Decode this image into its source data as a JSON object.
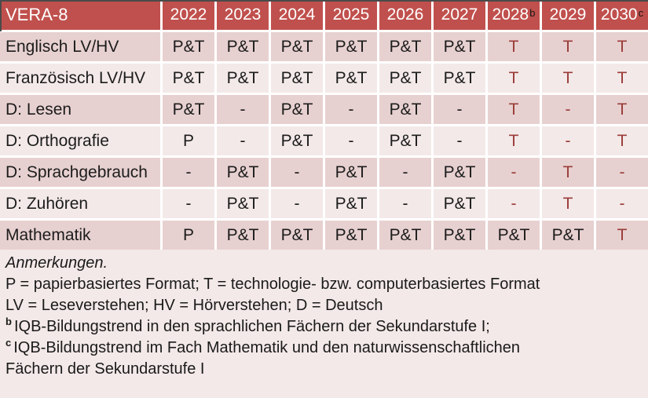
{
  "colors": {
    "header_bg": "#c0504d",
    "header_text": "#ffffff",
    "band_dark": "#e7d1d0",
    "band_light": "#f3e9e8",
    "notes_bg": "#f3e9e8",
    "technology_red": "#9a3c39",
    "body_text": "#1c1c1c"
  },
  "table": {
    "title": "VERA-8",
    "year_columns": [
      {
        "label": "2022",
        "sup": ""
      },
      {
        "label": "2023",
        "sup": ""
      },
      {
        "label": "2024",
        "sup": ""
      },
      {
        "label": "2025",
        "sup": ""
      },
      {
        "label": "2026",
        "sup": ""
      },
      {
        "label": "2027",
        "sup": ""
      },
      {
        "label": "2028",
        "sup": "b"
      },
      {
        "label": "2029",
        "sup": ""
      },
      {
        "label": "2030",
        "sup": "c"
      }
    ],
    "rows": [
      {
        "label": "Englisch LV/HV",
        "cells": [
          {
            "v": "P&T",
            "red": false
          },
          {
            "v": "P&T",
            "red": false
          },
          {
            "v": "P&T",
            "red": false
          },
          {
            "v": "P&T",
            "red": false
          },
          {
            "v": "P&T",
            "red": false
          },
          {
            "v": "P&T",
            "red": false
          },
          {
            "v": "T",
            "red": true
          },
          {
            "v": "T",
            "red": true
          },
          {
            "v": "T",
            "red": true
          }
        ]
      },
      {
        "label": "Französisch LV/HV",
        "cells": [
          {
            "v": "P&T",
            "red": false
          },
          {
            "v": "P&T",
            "red": false
          },
          {
            "v": "P&T",
            "red": false
          },
          {
            "v": "P&T",
            "red": false
          },
          {
            "v": "P&T",
            "red": false
          },
          {
            "v": "P&T",
            "red": false
          },
          {
            "v": "T",
            "red": true
          },
          {
            "v": "T",
            "red": true
          },
          {
            "v": "T",
            "red": true
          }
        ]
      },
      {
        "label": "D: Lesen",
        "cells": [
          {
            "v": "P&T",
            "red": false
          },
          {
            "v": "-",
            "red": false
          },
          {
            "v": "P&T",
            "red": false
          },
          {
            "v": "-",
            "red": false
          },
          {
            "v": "P&T",
            "red": false
          },
          {
            "v": "-",
            "red": false
          },
          {
            "v": "T",
            "red": true
          },
          {
            "v": "-",
            "red": true
          },
          {
            "v": "T",
            "red": true
          }
        ]
      },
      {
        "label": "D: Orthografie",
        "cells": [
          {
            "v": "P",
            "red": false
          },
          {
            "v": "-",
            "red": false
          },
          {
            "v": "P&T",
            "red": false
          },
          {
            "v": "-",
            "red": false
          },
          {
            "v": "P&T",
            "red": false
          },
          {
            "v": "-",
            "red": false
          },
          {
            "v": "T",
            "red": true
          },
          {
            "v": "-",
            "red": true
          },
          {
            "v": "T",
            "red": true
          }
        ]
      },
      {
        "label": "D: Sprachgebrauch",
        "cells": [
          {
            "v": "-",
            "red": false
          },
          {
            "v": "P&T",
            "red": false
          },
          {
            "v": "-",
            "red": false
          },
          {
            "v": "P&T",
            "red": false
          },
          {
            "v": "-",
            "red": false
          },
          {
            "v": "P&T",
            "red": false
          },
          {
            "v": "-",
            "red": true
          },
          {
            "v": "T",
            "red": true
          },
          {
            "v": "-",
            "red": true
          }
        ]
      },
      {
        "label": "D: Zuhören",
        "cells": [
          {
            "v": "-",
            "red": false
          },
          {
            "v": "P&T",
            "red": false
          },
          {
            "v": "-",
            "red": false
          },
          {
            "v": "P&T",
            "red": false
          },
          {
            "v": "-",
            "red": false
          },
          {
            "v": "P&T",
            "red": false
          },
          {
            "v": "-",
            "red": true
          },
          {
            "v": "T",
            "red": true
          },
          {
            "v": "-",
            "red": true
          }
        ]
      },
      {
        "label": "Mathematik",
        "cells": [
          {
            "v": "P",
            "red": false
          },
          {
            "v": "P&T",
            "red": false
          },
          {
            "v": "P&T",
            "red": false
          },
          {
            "v": "P&T",
            "red": false
          },
          {
            "v": "P&T",
            "red": false
          },
          {
            "v": "P&T",
            "red": false
          },
          {
            "v": "P&T",
            "red": false
          },
          {
            "v": "P&T",
            "red": false
          },
          {
            "v": "T",
            "red": true
          }
        ]
      }
    ]
  },
  "notes": {
    "lines": [
      {
        "sup": "",
        "text": "Anmerkungen.",
        "italic": true
      },
      {
        "sup": "",
        "text": "P = papierbasiertes Format; T = technologie- bzw. computerbasiertes Format",
        "italic": false
      },
      {
        "sup": "",
        "text": "LV = Leseverstehen; HV = Hörverstehen; D = Deutsch",
        "italic": false
      },
      {
        "sup": "b",
        "text": "IQB-Bildungstrend in den sprachlichen Fächern der Sekundarstufe I;",
        "italic": false
      },
      {
        "sup": "c",
        "text": "IQB-Bildungstrend im Fach Mathematik und den naturwissenschaftlichen",
        "italic": false
      },
      {
        "sup": "",
        "text": "Fächern der Sekundarstufe I",
        "italic": false
      }
    ]
  }
}
